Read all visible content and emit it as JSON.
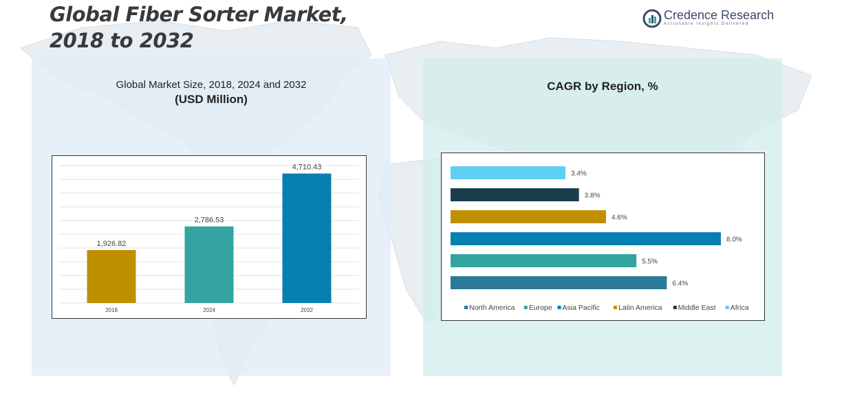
{
  "title_line1": "Global Fiber Sorter Market,",
  "title_line2": "2018 to 2032",
  "logo": {
    "name": "Credence Research",
    "tagline": "Actionable Insights Delivered"
  },
  "colors": {
    "north_america": "#2e7a99",
    "europe": "#34a4a0",
    "asia_pacific": "#0580b0",
    "latin_america": "#c08f00",
    "middle_east": "#1a3d4c",
    "africa": "#5fd0f5"
  },
  "left_panel": {
    "title": "Global Market Size, 2018, 2024 and 2032",
    "subtitle": "(USD Million)"
  },
  "right_panel": {
    "title": "CAGR by Region, %"
  },
  "chart_data": [
    {
      "type": "bar",
      "title": "Global Market Size, 2018, 2024 and 2032",
      "subtitle": "(USD Million)",
      "categories": [
        "2018",
        "2024",
        "2032"
      ],
      "values": [
        1926.82,
        2786.53,
        4710.43
      ],
      "value_labels": [
        "1,926.82",
        "2,786.53",
        "4,710.43"
      ],
      "colors": [
        "#c08f00",
        "#34a4a0",
        "#0580b0"
      ],
      "ylim": [
        0,
        5000
      ],
      "grid": true
    },
    {
      "type": "bar",
      "orientation": "horizontal",
      "title": "CAGR by Region, %",
      "categories": [
        "Africa",
        "Middle East",
        "Latin America",
        "Asia Pacific",
        "Europe",
        "North America"
      ],
      "values": [
        3.4,
        3.8,
        4.6,
        8.0,
        5.5,
        6.4
      ],
      "value_labels": [
        "3.4%",
        "3.8%",
        "4.6%",
        "8.0%",
        "5.5%",
        "6.4%"
      ],
      "colors": [
        "#5fd0f5",
        "#1a3d4c",
        "#c08f00",
        "#0580b0",
        "#34a4a0",
        "#2e7a99"
      ],
      "xlim": [
        0,
        8.0
      ],
      "legend": [
        "North America",
        "Europe",
        "Asia Pacific",
        "Latin America",
        "Middle East",
        "Africa"
      ],
      "legend_colors": [
        "#2e7a99",
        "#34a4a0",
        "#0580b0",
        "#c08f00",
        "#1a3d4c",
        "#5fd0f5"
      ],
      "legend_position": "bottom"
    }
  ]
}
